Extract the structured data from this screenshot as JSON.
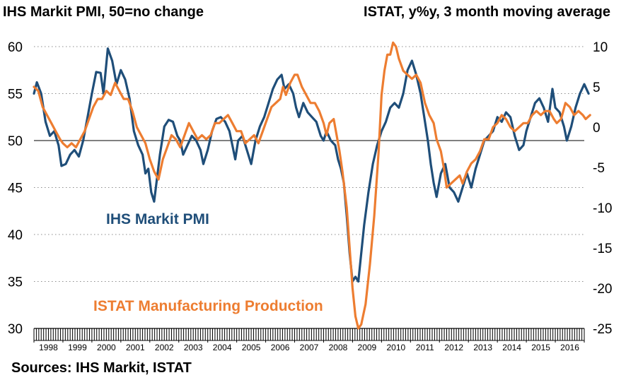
{
  "chart_data": {
    "type": "line",
    "title_left": "IHS Markit PMI, 50=no change",
    "title_right": "ISTAT, y%y, 3 month moving average",
    "source": "Sources: IHS Markit, ISTAT",
    "x_start": 1998,
    "x_end": 2017,
    "x_tick_labels": [
      "1998",
      "1999",
      "2000",
      "2001",
      "2002",
      "2003",
      "2004",
      "2005",
      "2006",
      "2007",
      "2008",
      "2009",
      "2010",
      "2011",
      "2012",
      "2013",
      "2014",
      "2015",
      "2016"
    ],
    "y_left": {
      "label": "IHS Markit PMI, 50=no change",
      "ylim": [
        30,
        60
      ],
      "ticks": [
        "30",
        "35",
        "40",
        "45",
        "50",
        "55",
        "60"
      ]
    },
    "y_right": {
      "label": "ISTAT, y%y, 3 month moving average",
      "ylim": [
        -25,
        10
      ],
      "ticks": [
        "-25",
        "-20",
        "-15",
        "-10",
        "-5",
        "0",
        "5",
        "10"
      ]
    },
    "grid": "horizontal dotted",
    "reference_line": {
      "axis": "left",
      "value": 50
    },
    "series": [
      {
        "name": "IHS Markit PMI",
        "axis": "left",
        "color": "#1f4e79",
        "points": [
          [
            1998.0,
            55.0
          ],
          [
            1998.1,
            56.2
          ],
          [
            1998.25,
            55.0
          ],
          [
            1998.4,
            52.0
          ],
          [
            1998.55,
            50.5
          ],
          [
            1998.7,
            51.0
          ],
          [
            1998.85,
            49.5
          ],
          [
            1998.95,
            47.3
          ],
          [
            1999.1,
            47.5
          ],
          [
            1999.25,
            48.5
          ],
          [
            1999.4,
            49.0
          ],
          [
            1999.55,
            48.3
          ],
          [
            1999.7,
            50.0
          ],
          [
            1999.85,
            52.5
          ],
          [
            2000.0,
            55.0
          ],
          [
            2000.15,
            57.3
          ],
          [
            2000.3,
            57.2
          ],
          [
            2000.4,
            55.0
          ],
          [
            2000.55,
            59.8
          ],
          [
            2000.7,
            58.5
          ],
          [
            2000.85,
            56.0
          ],
          [
            2001.0,
            57.5
          ],
          [
            2001.15,
            56.5
          ],
          [
            2001.3,
            54.5
          ],
          [
            2001.45,
            51.0
          ],
          [
            2001.6,
            49.5
          ],
          [
            2001.75,
            48.5
          ],
          [
            2001.85,
            46.5
          ],
          [
            2001.95,
            47.0
          ],
          [
            2002.05,
            44.5
          ],
          [
            2002.15,
            43.5
          ],
          [
            2002.25,
            46.0
          ],
          [
            2002.35,
            48.5
          ],
          [
            2002.5,
            51.5
          ],
          [
            2002.65,
            52.2
          ],
          [
            2002.8,
            52.0
          ],
          [
            2002.95,
            50.5
          ],
          [
            2003.05,
            50.0
          ],
          [
            2003.15,
            48.5
          ],
          [
            2003.3,
            49.5
          ],
          [
            2003.45,
            50.5
          ],
          [
            2003.6,
            50.0
          ],
          [
            2003.75,
            49.0
          ],
          [
            2003.85,
            47.5
          ],
          [
            2004.0,
            49.0
          ],
          [
            2004.15,
            51.0
          ],
          [
            2004.3,
            52.3
          ],
          [
            2004.45,
            52.5
          ],
          [
            2004.6,
            52.0
          ],
          [
            2004.75,
            51.0
          ],
          [
            2004.85,
            49.5
          ],
          [
            2004.95,
            48.0
          ],
          [
            2005.05,
            50.0
          ],
          [
            2005.2,
            50.5
          ],
          [
            2005.35,
            49.0
          ],
          [
            2005.5,
            47.5
          ],
          [
            2005.65,
            50.0
          ],
          [
            2005.8,
            51.5
          ],
          [
            2005.95,
            52.5
          ],
          [
            2006.1,
            54.0
          ],
          [
            2006.25,
            55.5
          ],
          [
            2006.4,
            56.5
          ],
          [
            2006.55,
            57.0
          ],
          [
            2006.65,
            55.5
          ],
          [
            2006.8,
            56.0
          ],
          [
            2006.95,
            55.0
          ],
          [
            2007.05,
            53.5
          ],
          [
            2007.15,
            52.5
          ],
          [
            2007.3,
            54.0
          ],
          [
            2007.45,
            53.0
          ],
          [
            2007.6,
            52.5
          ],
          [
            2007.75,
            52.0
          ],
          [
            2007.9,
            50.5
          ],
          [
            2008.0,
            50.0
          ],
          [
            2008.1,
            51.0
          ],
          [
            2008.25,
            50.0
          ],
          [
            2008.4,
            49.5
          ],
          [
            2008.5,
            48.0
          ],
          [
            2008.6,
            47.0
          ],
          [
            2008.7,
            45.5
          ],
          [
            2008.8,
            42.0
          ],
          [
            2008.9,
            38.0
          ],
          [
            2009.0,
            35.0
          ],
          [
            2009.1,
            35.5
          ],
          [
            2009.2,
            35.0
          ],
          [
            2009.3,
            38.0
          ],
          [
            2009.4,
            41.0
          ],
          [
            2009.55,
            44.5
          ],
          [
            2009.7,
            47.5
          ],
          [
            2009.85,
            49.5
          ],
          [
            2010.0,
            51.0
          ],
          [
            2010.15,
            52.0
          ],
          [
            2010.3,
            53.5
          ],
          [
            2010.45,
            54.0
          ],
          [
            2010.6,
            53.5
          ],
          [
            2010.75,
            55.0
          ],
          [
            2010.9,
            57.5
          ],
          [
            2011.05,
            58.5
          ],
          [
            2011.2,
            57.0
          ],
          [
            2011.35,
            55.0
          ],
          [
            2011.5,
            52.0
          ],
          [
            2011.6,
            50.0
          ],
          [
            2011.7,
            47.5
          ],
          [
            2011.8,
            45.5
          ],
          [
            2011.9,
            44.0
          ],
          [
            2012.05,
            46.5
          ],
          [
            2012.2,
            47.5
          ],
          [
            2012.35,
            45.0
          ],
          [
            2012.5,
            44.5
          ],
          [
            2012.65,
            43.5
          ],
          [
            2012.8,
            45.0
          ],
          [
            2012.95,
            46.5
          ],
          [
            2013.1,
            45.0
          ],
          [
            2013.25,
            47.0
          ],
          [
            2013.4,
            48.5
          ],
          [
            2013.55,
            50.0
          ],
          [
            2013.7,
            50.5
          ],
          [
            2013.85,
            51.0
          ],
          [
            2014.0,
            52.5
          ],
          [
            2014.15,
            52.0
          ],
          [
            2014.3,
            53.0
          ],
          [
            2014.45,
            52.5
          ],
          [
            2014.6,
            50.5
          ],
          [
            2014.75,
            49.0
          ],
          [
            2014.9,
            49.5
          ],
          [
            2015.0,
            51.0
          ],
          [
            2015.15,
            52.5
          ],
          [
            2015.3,
            54.0
          ],
          [
            2015.45,
            54.5
          ],
          [
            2015.6,
            53.5
          ],
          [
            2015.75,
            52.0
          ],
          [
            2015.9,
            55.5
          ],
          [
            2016.0,
            53.5
          ],
          [
            2016.15,
            53.0
          ],
          [
            2016.3,
            51.5
          ],
          [
            2016.4,
            50.0
          ],
          [
            2016.55,
            51.5
          ],
          [
            2016.7,
            53.5
          ],
          [
            2016.85,
            55.0
          ],
          [
            2017.0,
            56.0
          ],
          [
            2017.15,
            55.0
          ]
        ]
      },
      {
        "name": "ISTAT Manufacturing Production",
        "axis": "right",
        "color": "#ed7d31",
        "points": [
          [
            1998.0,
            5.0
          ],
          [
            1998.15,
            4.5
          ],
          [
            1998.3,
            2.5
          ],
          [
            1998.45,
            1.5
          ],
          [
            1998.6,
            0.5
          ],
          [
            1998.75,
            -0.5
          ],
          [
            1998.9,
            -1.5
          ],
          [
            1999.0,
            -2.0
          ],
          [
            1999.15,
            -2.5
          ],
          [
            1999.3,
            -2.0
          ],
          [
            1999.45,
            -2.5
          ],
          [
            1999.6,
            -1.5
          ],
          [
            1999.75,
            -0.5
          ],
          [
            1999.9,
            1.0
          ],
          [
            2000.05,
            2.5
          ],
          [
            2000.2,
            3.5
          ],
          [
            2000.35,
            3.5
          ],
          [
            2000.5,
            4.5
          ],
          [
            2000.65,
            4.0
          ],
          [
            2000.8,
            5.5
          ],
          [
            2000.95,
            4.5
          ],
          [
            2001.1,
            3.5
          ],
          [
            2001.25,
            3.5
          ],
          [
            2001.4,
            2.0
          ],
          [
            2001.55,
            0.0
          ],
          [
            2001.7,
            -1.0
          ],
          [
            2001.85,
            -2.0
          ],
          [
            2002.0,
            -4.0
          ],
          [
            2002.15,
            -5.5
          ],
          [
            2002.3,
            -6.5
          ],
          [
            2002.45,
            -4.0
          ],
          [
            2002.6,
            -2.5
          ],
          [
            2002.75,
            -1.0
          ],
          [
            2002.9,
            -1.5
          ],
          [
            2003.05,
            -2.5
          ],
          [
            2003.2,
            -1.0
          ],
          [
            2003.35,
            0.5
          ],
          [
            2003.5,
            -0.5
          ],
          [
            2003.65,
            -1.5
          ],
          [
            2003.8,
            -1.0
          ],
          [
            2003.95,
            -1.5
          ],
          [
            2004.1,
            -1.0
          ],
          [
            2004.25,
            0.5
          ],
          [
            2004.4,
            0.5
          ],
          [
            2004.55,
            1.0
          ],
          [
            2004.7,
            1.5
          ],
          [
            2004.85,
            0.5
          ],
          [
            2005.0,
            -0.5
          ],
          [
            2005.15,
            -0.5
          ],
          [
            2005.3,
            -2.0
          ],
          [
            2005.45,
            -1.5
          ],
          [
            2005.6,
            -1.0
          ],
          [
            2005.75,
            -2.0
          ],
          [
            2005.9,
            -0.5
          ],
          [
            2006.05,
            1.0
          ],
          [
            2006.2,
            2.5
          ],
          [
            2006.35,
            3.0
          ],
          [
            2006.5,
            3.5
          ],
          [
            2006.6,
            5.0
          ],
          [
            2006.7,
            4.0
          ],
          [
            2006.85,
            5.5
          ],
          [
            2007.0,
            6.5
          ],
          [
            2007.1,
            6.5
          ],
          [
            2007.25,
            5.0
          ],
          [
            2007.4,
            4.0
          ],
          [
            2007.55,
            3.0
          ],
          [
            2007.7,
            3.0
          ],
          [
            2007.85,
            2.0
          ],
          [
            2008.0,
            0.5
          ],
          [
            2008.1,
            -1.0
          ],
          [
            2008.2,
            0.5
          ],
          [
            2008.35,
            1.0
          ],
          [
            2008.45,
            -1.0
          ],
          [
            2008.55,
            -3.0
          ],
          [
            2008.65,
            -5.5
          ],
          [
            2008.8,
            -10.0
          ],
          [
            2008.9,
            -15.0
          ],
          [
            2009.0,
            -20.0
          ],
          [
            2009.1,
            -23.5
          ],
          [
            2009.2,
            -25.0
          ],
          [
            2009.3,
            -24.5
          ],
          [
            2009.45,
            -22.0
          ],
          [
            2009.6,
            -17.0
          ],
          [
            2009.75,
            -11.0
          ],
          [
            2009.9,
            -3.0
          ],
          [
            2010.0,
            4.0
          ],
          [
            2010.1,
            7.0
          ],
          [
            2010.2,
            9.0
          ],
          [
            2010.3,
            9.0
          ],
          [
            2010.4,
            10.5
          ],
          [
            2010.5,
            10.0
          ],
          [
            2010.6,
            8.5
          ],
          [
            2010.75,
            7.0
          ],
          [
            2010.9,
            6.5
          ],
          [
            2011.05,
            6.0
          ],
          [
            2011.2,
            6.5
          ],
          [
            2011.35,
            5.5
          ],
          [
            2011.5,
            3.0
          ],
          [
            2011.65,
            1.5
          ],
          [
            2011.8,
            0.5
          ],
          [
            2011.9,
            -1.5
          ],
          [
            2012.05,
            -3.0
          ],
          [
            2012.15,
            -5.0
          ],
          [
            2012.25,
            -7.5
          ],
          [
            2012.4,
            -7.0
          ],
          [
            2012.55,
            -6.5
          ],
          [
            2012.7,
            -6.0
          ],
          [
            2012.8,
            -7.0
          ],
          [
            2012.95,
            -5.5
          ],
          [
            2013.1,
            -4.5
          ],
          [
            2013.25,
            -4.0
          ],
          [
            2013.4,
            -3.0
          ],
          [
            2013.55,
            -1.5
          ],
          [
            2013.7,
            -1.5
          ],
          [
            2013.85,
            0.0
          ],
          [
            2014.0,
            0.5
          ],
          [
            2014.15,
            1.5
          ],
          [
            2014.3,
            1.0
          ],
          [
            2014.45,
            0.0
          ],
          [
            2014.6,
            -0.5
          ],
          [
            2014.75,
            0.0
          ],
          [
            2014.9,
            0.5
          ],
          [
            2015.05,
            0.5
          ],
          [
            2015.2,
            1.5
          ],
          [
            2015.35,
            2.0
          ],
          [
            2015.5,
            1.5
          ],
          [
            2015.65,
            2.0
          ],
          [
            2015.8,
            2.0
          ],
          [
            2015.95,
            1.0
          ],
          [
            2016.05,
            0.5
          ],
          [
            2016.2,
            1.0
          ],
          [
            2016.35,
            3.0
          ],
          [
            2016.5,
            2.5
          ],
          [
            2016.65,
            1.5
          ],
          [
            2016.8,
            2.0
          ],
          [
            2016.95,
            1.5
          ],
          [
            2017.05,
            1.0
          ],
          [
            2017.2,
            1.5
          ]
        ]
      }
    ],
    "annotations": [
      {
        "text": "IHS Markit PMI",
        "series": "IHS Markit PMI"
      },
      {
        "text": "ISTAT Manufacturing Production",
        "series": "ISTAT Manufacturing Production"
      }
    ]
  }
}
